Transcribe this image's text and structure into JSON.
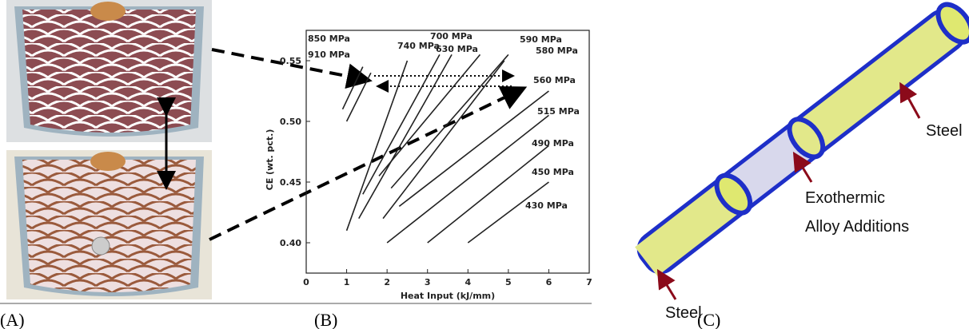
{
  "panels": [
    {
      "label": "(A)"
    },
    {
      "label": "(B)"
    },
    {
      "label": "(C)",
      "annotations": [
        "Steel",
        "Exothermic",
        "Alloy Additions",
        "Steel"
      ]
    }
  ],
  "chart_data": {
    "type": "line",
    "xlabel": "Heat Input (kJ/mm)",
    "ylabel": "CE (wt. pct.)",
    "xlim": [
      0,
      7
    ],
    "ylim": [
      0.375,
      0.575
    ],
    "xticks": [
      0,
      1,
      2,
      3,
      4,
      5,
      6,
      7
    ],
    "yticks": [
      {
        "value": 0.4,
        "label": "0.40"
      },
      0.45,
      {
        "value": 0.5,
        "label": "0.50"
      },
      0.55
    ],
    "series": [
      {
        "name": "850 MPa",
        "color": "#222222",
        "x": [
          1.0,
          1.6
        ],
        "values": [
          0.5,
          0.54
        ]
      },
      {
        "name": "910 MPa",
        "color": "#222222",
        "x": [
          0.9,
          1.4
        ],
        "values": [
          0.51,
          0.545
        ]
      },
      {
        "name": "740 MPa",
        "color": "#222222",
        "x": [
          1.0,
          2.5
        ],
        "values": [
          0.41,
          0.55
        ]
      },
      {
        "name": "700 MPa",
        "color": "#222222",
        "x": [
          1.4,
          3.3
        ],
        "values": [
          0.44,
          0.555
        ]
      },
      {
        "name": "630 MPa",
        "color": "#222222",
        "x": [
          1.3,
          3.6
        ],
        "values": [
          0.42,
          0.555
        ]
      },
      {
        "name": "590 MPa",
        "color": "#222222",
        "x": [
          1.8,
          4.3
        ],
        "values": [
          0.455,
          0.555
        ]
      },
      {
        "name": "580 MPa",
        "color": "#222222",
        "x": [
          2.1,
          5.0
        ],
        "values": [
          0.445,
          0.555
        ]
      },
      {
        "name": "560 MPa",
        "color": "#222222",
        "x": [
          1.9,
          4.9
        ],
        "values": [
          0.42,
          0.55
        ]
      },
      {
        "name": "515 MPa",
        "color": "#222222",
        "x": [
          2.3,
          6.0
        ],
        "values": [
          0.43,
          0.525
        ]
      },
      {
        "name": "490 MPa",
        "color": "#222222",
        "x": [
          2.0,
          6.0
        ],
        "values": [
          0.4,
          0.505
        ]
      },
      {
        "name": "450 MPa",
        "color": "#222222",
        "x": [
          3.0,
          6.0
        ],
        "values": [
          0.4,
          0.48
        ]
      },
      {
        "name": "430 MPa",
        "color": "#222222",
        "x": [
          4.0,
          6.0
        ],
        "values": [
          0.4,
          0.45
        ]
      }
    ]
  }
}
